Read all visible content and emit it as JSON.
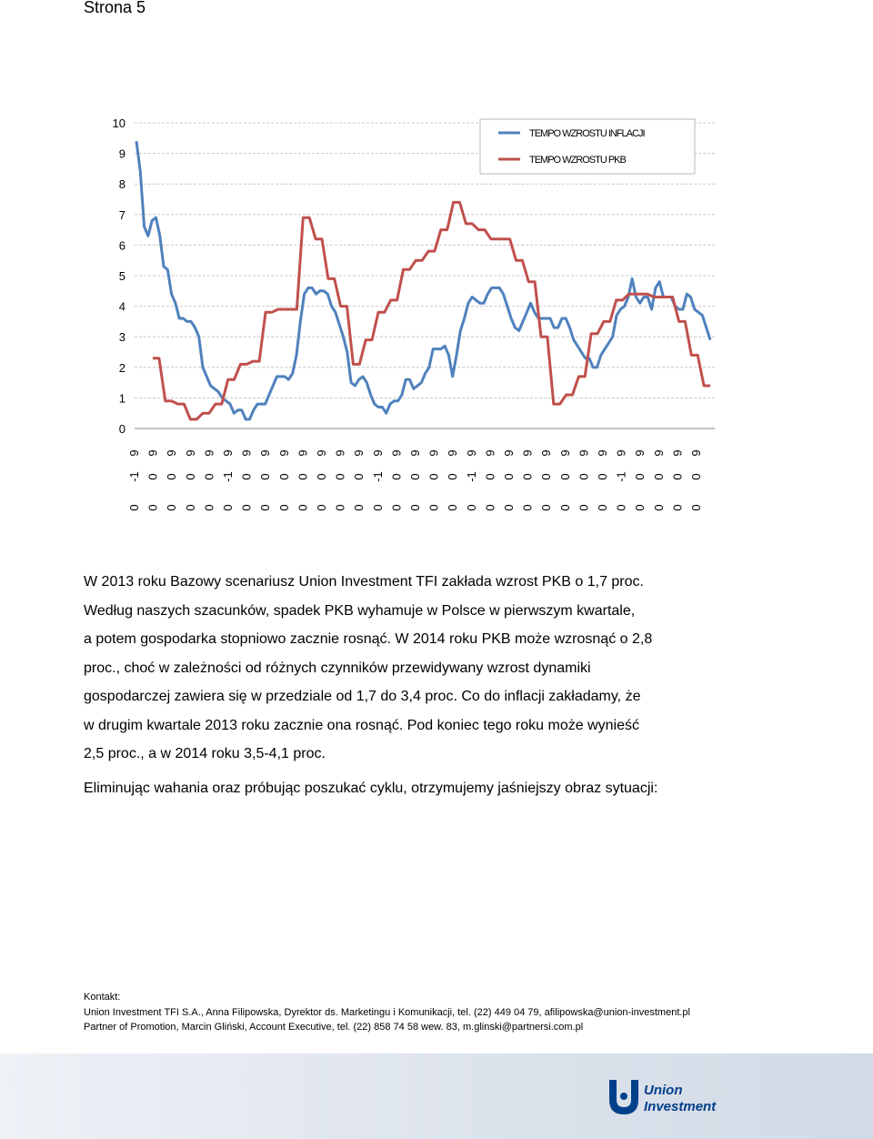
{
  "page": {
    "label": "Strona 5"
  },
  "chart_data": {
    "type": "line",
    "ylim": [
      0,
      10
    ],
    "yticks": [
      "0",
      "1",
      "2",
      "3",
      "4",
      "5",
      "6",
      "7",
      "8",
      "9",
      "10"
    ],
    "xtick_rows": {
      "row1": [
        "9",
        "9",
        "9",
        "9",
        "9",
        "9",
        "9",
        "9",
        "9",
        "9",
        "9",
        "9",
        "9",
        "9",
        "9",
        "9",
        "9",
        "9",
        "9",
        "9",
        "9",
        "9",
        "9",
        "9",
        "9",
        "9",
        "9",
        "9",
        "9",
        "9",
        "9"
      ],
      "row2": [
        "-1",
        "0",
        "0",
        "0",
        "0",
        "-1",
        "0",
        "0",
        "0",
        "0",
        "0",
        "0",
        "0",
        "-1",
        "0",
        "0",
        "0",
        "0",
        "-1",
        "0",
        "0",
        "0",
        "0",
        "0",
        "0",
        "0",
        "-1",
        "0",
        "0",
        "0",
        "0"
      ],
      "row3": [
        "0",
        "0",
        "0",
        "0",
        "0",
        "0",
        "0",
        "0",
        "0",
        "0",
        "0",
        "0",
        "0",
        "0",
        "0",
        "0",
        "0",
        "0",
        "0",
        "0",
        "0",
        "0",
        "0",
        "0",
        "0",
        "0",
        "0",
        "0",
        "0",
        "0",
        "0"
      ]
    },
    "series": [
      {
        "name": "TEMPO WZROSTU INFLACJI",
        "color": "#4f81bd",
        "values": [
          9.4,
          8.4,
          6.6,
          6.3,
          6.8,
          6.9,
          6.3,
          5.3,
          5.2,
          4.4,
          4.1,
          3.6,
          3.6,
          3.5,
          3.5,
          3.3,
          3.0,
          2.0,
          1.7,
          1.4,
          1.3,
          1.2,
          1.0,
          0.9,
          0.8,
          0.5,
          0.6,
          0.6,
          0.3,
          0.3,
          0.6,
          0.8,
          0.8,
          0.8,
          1.1,
          1.4,
          1.7,
          1.7,
          1.7,
          1.6,
          1.8,
          2.4,
          3.5,
          4.4,
          4.6,
          4.6,
          4.4,
          4.5,
          4.5,
          4.4,
          4.0,
          3.8,
          3.4,
          3.0,
          2.5,
          1.5,
          1.4,
          1.6,
          1.7,
          1.5,
          1.1,
          0.8,
          0.7,
          0.7,
          0.5,
          0.8,
          0.9,
          0.9,
          1.1,
          1.6,
          1.6,
          1.3,
          1.4,
          1.5,
          1.8,
          2.0,
          2.6,
          2.6,
          2.6,
          2.7,
          2.4,
          1.7,
          2.4,
          3.2,
          3.6,
          4.1,
          4.3,
          4.2,
          4.1,
          4.1,
          4.4,
          4.6,
          4.6,
          4.6,
          4.4,
          4.0,
          3.6,
          3.3,
          3.2,
          3.5,
          3.8,
          4.1,
          3.8,
          3.6,
          3.6,
          3.6,
          3.6,
          3.3,
          3.3,
          3.6,
          3.6,
          3.3,
          2.9,
          2.7,
          2.5,
          2.3,
          2.3,
          2.0,
          2.0,
          2.4,
          2.6,
          2.8,
          3.0,
          3.7,
          3.9,
          4.0,
          4.3,
          4.9,
          4.3,
          4.1,
          4.3,
          4.3,
          3.9,
          4.6,
          4.8,
          4.3,
          4.3,
          4.3,
          4.0,
          3.9,
          3.9,
          4.4,
          4.3,
          3.9,
          3.8,
          3.7,
          3.3,
          2.9
        ]
      },
      {
        "name": "TEMPO WZROSTU PKB",
        "color": "#c0504d",
        "values": [
          2.3,
          2.3,
          0.9,
          0.9,
          0.8,
          0.8,
          0.3,
          0.3,
          0.5,
          0.5,
          0.8,
          0.8,
          1.6,
          1.6,
          2.1,
          2.1,
          2.2,
          2.2,
          3.8,
          3.8,
          3.9,
          3.9,
          3.9,
          3.9,
          6.9,
          6.9,
          6.2,
          6.2,
          4.9,
          4.9,
          4.0,
          4.0,
          2.1,
          2.1,
          2.9,
          2.9,
          3.8,
          3.8,
          4.2,
          4.2,
          5.2,
          5.2,
          5.5,
          5.5,
          5.8,
          5.8,
          6.5,
          6.5,
          7.4,
          7.4,
          6.7,
          6.7,
          6.5,
          6.5,
          6.2,
          6.2,
          6.2,
          6.2,
          5.5,
          5.5,
          4.8,
          4.8,
          3.0,
          3.0,
          0.8,
          0.8,
          1.1,
          1.1,
          1.7,
          1.7,
          3.1,
          3.1,
          3.5,
          3.5,
          4.2,
          4.2,
          4.4,
          4.4,
          4.4,
          4.4,
          4.3,
          4.3,
          4.3,
          4.3,
          3.5,
          3.5,
          2.4,
          2.4,
          1.4,
          1.4
        ]
      }
    ]
  },
  "text": {
    "body_lines": [
      "W 2013 roku Bazowy scenariusz Union Investment TFI zakłada wzrost PKB o 1,7 proc.",
      "Według naszych szacunków, spadek PKB wyhamuje w Polsce w pierwszym kwartale,",
      "a potem gospodarka stopniowo zacznie rosnąć. W 2014 roku PKB może wzrosnąć o 2,8",
      "proc., choć w zależności od różnych czynników przewidywany wzrost dynamiki",
      "gospodarczej zawiera się w przedziale od 1,7 do 3,4 proc. Co do inflacji zakładamy, że",
      "w drugim kwartale 2013 roku zacznie ona rosnąć. Pod koniec tego roku może wynieść",
      "2,5 proc., a w 2014 roku 3,5-4,1 proc."
    ],
    "intro": "Eliminując wahania oraz próbując poszukać cyklu, otrzymujemy jaśniejszy obraz sytuacji:"
  },
  "contact": {
    "label": "Kontakt:",
    "line1": "Union Investment TFI S.A., Anna Filipowska, Dyrektor ds. Marketingu i Komunikacji, tel. (22) 449 04 79, afilipowska@union-investment.pl",
    "line2": "Partner of Promotion, Marcin Gliński, Account Executive, tel. (22) 858 74 58 wew. 83, m.glinski@partnersi.com.pl"
  },
  "logo": {
    "line1": "Union",
    "line2": "Investment",
    "color": "#003f8a"
  }
}
